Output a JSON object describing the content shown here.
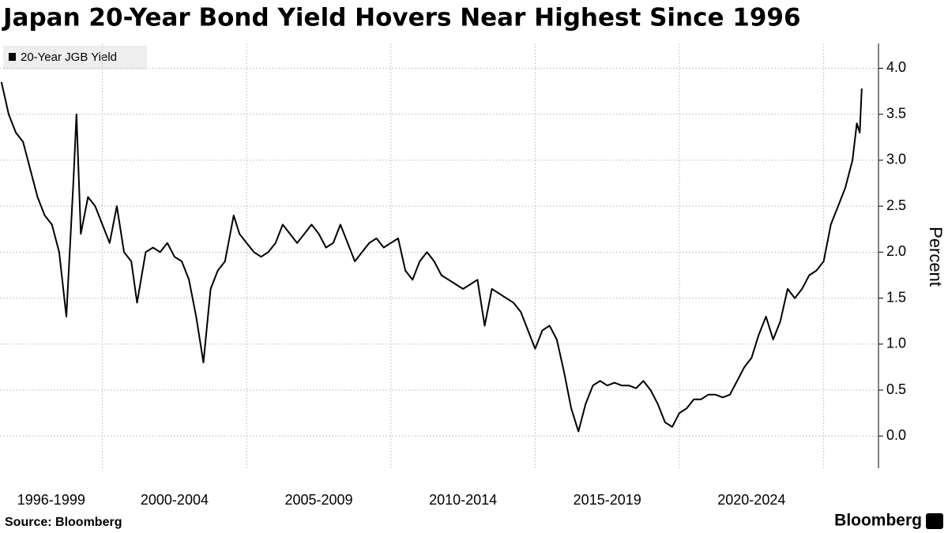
{
  "chart_data": {
    "type": "line",
    "title": "Japan 20-Year Bond Yield Hovers Near Highest Since 1996",
    "y_label": "Percent",
    "source": "Source: Bloomberg",
    "brand": "Bloomberg",
    "categories": [
      "1996-1999",
      "2000-2004",
      "2005-2009",
      "2010-2014",
      "2015-2019",
      "2020-2024",
      null
    ],
    "xlim": [
      1996.45,
      2026.9
    ],
    "xticks": [
      2000,
      2005,
      2010,
      2015,
      2020,
      2025
    ],
    "ylim": [
      -0.35,
      4.27
    ],
    "yticks": [
      {
        "value": 0,
        "label": "0.0"
      },
      {
        "value": 0.5,
        "label": "0.5"
      },
      {
        "value": 1,
        "label": "1.0"
      },
      {
        "value": 1.5,
        "label": "1.5"
      },
      {
        "value": 2,
        "label": "2.0"
      },
      {
        "value": 2.5,
        "label": "2.5"
      },
      {
        "value": 3,
        "label": "3.0"
      },
      {
        "value": 3.5,
        "label": "3.5"
      },
      {
        "value": 4,
        "label": "4.0"
      }
    ],
    "grid": true,
    "series": [
      {
        "name": "20-Year JGB Yield",
        "color": "#000000",
        "x": [
          1996.5,
          1996.75,
          1997,
          1997.25,
          1997.5,
          1997.75,
          1998,
          1998.25,
          1998.5,
          1998.75,
          1999,
          1999.1,
          1999.25,
          1999.5,
          1999.75,
          2000,
          2000.25,
          2000.5,
          2000.75,
          2001,
          2001.2,
          2001.5,
          2001.75,
          2002,
          2002.25,
          2002.5,
          2002.75,
          2003,
          2003.25,
          2003.5,
          2003.75,
          2004,
          2004.25,
          2004.55,
          2004.75,
          2005,
          2005.25,
          2005.5,
          2005.75,
          2006,
          2006.25,
          2006.5,
          2006.75,
          2007,
          2007.25,
          2007.5,
          2007.75,
          2008,
          2008.25,
          2008.5,
          2008.75,
          2009,
          2009.25,
          2009.5,
          2009.75,
          2010,
          2010.25,
          2010.5,
          2010.75,
          2011,
          2011.25,
          2011.5,
          2011.75,
          2012,
          2012.25,
          2012.5,
          2012.75,
          2013,
          2013.25,
          2013.5,
          2013.75,
          2014,
          2014.25,
          2014.5,
          2014.75,
          2015,
          2015.25,
          2015.5,
          2015.75,
          2016,
          2016.25,
          2016.5,
          2016.75,
          2017,
          2017.25,
          2017.5,
          2017.75,
          2018,
          2018.25,
          2018.5,
          2018.75,
          2019,
          2019.25,
          2019.5,
          2019.75,
          2020,
          2020.25,
          2020.5,
          2020.75,
          2021,
          2021.25,
          2021.5,
          2021.75,
          2022,
          2022.25,
          2022.5,
          2022.75,
          2023,
          2023.25,
          2023.5,
          2023.75,
          2024,
          2024.25,
          2024.5,
          2024.75,
          2025,
          2025.25,
          2025.5,
          2025.75,
          2026,
          2026.15,
          2026.25,
          2026.32
        ],
        "values": [
          3.85,
          3.5,
          3.3,
          3.2,
          2.9,
          2.6,
          2.4,
          2.3,
          2.0,
          1.3,
          2.8,
          3.5,
          2.2,
          2.6,
          2.5,
          2.3,
          2.1,
          2.5,
          2.0,
          1.9,
          1.45,
          2.0,
          2.05,
          2.0,
          2.1,
          1.95,
          1.9,
          1.7,
          1.3,
          0.8,
          1.6,
          1.8,
          1.9,
          2.4,
          2.2,
          2.1,
          2.0,
          1.95,
          2.0,
          2.1,
          2.3,
          2.2,
          2.1,
          2.2,
          2.3,
          2.2,
          2.05,
          2.1,
          2.3,
          2.1,
          1.9,
          2.0,
          2.1,
          2.15,
          2.05,
          2.1,
          2.15,
          1.8,
          1.7,
          1.9,
          2.0,
          1.9,
          1.75,
          1.7,
          1.65,
          1.6,
          1.65,
          1.7,
          1.2,
          1.6,
          1.55,
          1.5,
          1.45,
          1.35,
          1.15,
          0.95,
          1.15,
          1.2,
          1.05,
          0.7,
          0.3,
          0.05,
          0.35,
          0.55,
          0.6,
          0.55,
          0.58,
          0.55,
          0.55,
          0.52,
          0.6,
          0.5,
          0.35,
          0.15,
          0.1,
          0.25,
          0.3,
          0.4,
          0.4,
          0.45,
          0.45,
          0.42,
          0.45,
          0.6,
          0.75,
          0.85,
          1.1,
          1.3,
          1.05,
          1.25,
          1.6,
          1.5,
          1.6,
          1.75,
          1.8,
          1.9,
          2.3,
          2.5,
          2.7,
          3.0,
          3.4,
          3.3,
          3.78
        ]
      }
    ]
  }
}
